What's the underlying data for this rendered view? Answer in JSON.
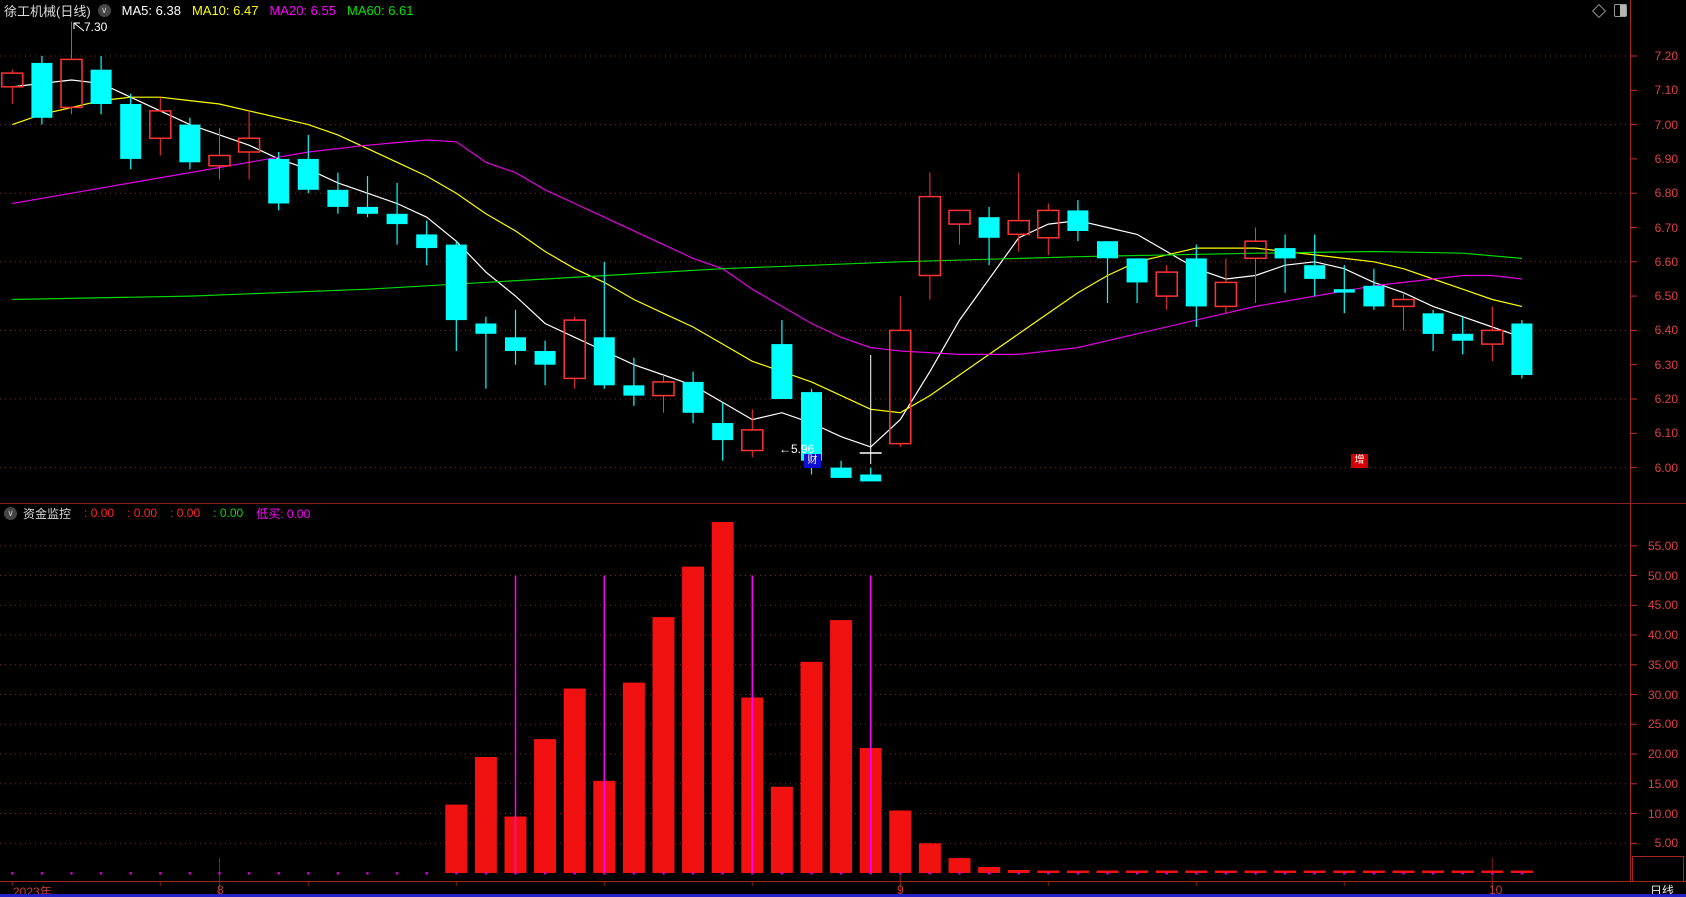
{
  "header": {
    "title": "徐工机械(日线)",
    "collapse_icon": "chevron-down-circle-icon",
    "legend": [
      {
        "label": "MA5:",
        "value": "6.38",
        "color": "#ffffff"
      },
      {
        "label": "MA10:",
        "value": "6.47",
        "color": "#ffff00"
      },
      {
        "label": "MA20:",
        "value": "6.55",
        "color": "#ff00ff"
      },
      {
        "label": "MA60:",
        "value": "6.61",
        "color": "#00e600"
      }
    ],
    "icons": [
      "diamond-icon",
      "split-square-icon"
    ]
  },
  "indicator_header": {
    "collapse_icon": "chevron-down-circle-icon",
    "title": "资金监控",
    "values": [
      {
        "label": ":",
        "value": "0.00",
        "color": "#ff2525"
      },
      {
        "label": ":",
        "value": "0.00",
        "color": "#ff2525"
      },
      {
        "label": ":",
        "value": "0.00",
        "color": "#ff2525"
      },
      {
        "label": ":",
        "value": "0.00",
        "color": "#00dd00"
      },
      {
        "label": "低买:",
        "value": "0.00",
        "color": "#ff00ff"
      }
    ]
  },
  "annotations": {
    "high_label": "7.30",
    "low_label": "←5.96",
    "event_badges": [
      {
        "text": "财",
        "bg": "#0d0dd6",
        "slot": 27
      },
      {
        "text": "增",
        "bg": "#d40000",
        "slot": 45.5
      }
    ],
    "cross_marker_slot": 29
  },
  "time_axis": {
    "year_label": "2023年",
    "months": [
      {
        "label": "8",
        "slot": 7
      },
      {
        "label": "9",
        "slot": 30
      },
      {
        "label": "10",
        "slot": 50
      }
    ]
  },
  "period_box": {
    "label": "日线"
  },
  "chart_data": {
    "type": "candlestick",
    "title": "徐工机械(日线)",
    "panels": [
      "price-kline",
      "fund-monitor-bars"
    ],
    "price_axis": {
      "values": [
        7.2,
        7.1,
        7.0,
        6.9,
        6.8,
        6.7,
        6.6,
        6.5,
        6.4,
        6.3,
        6.2,
        6.1,
        6.0
      ],
      "gridlines": [
        7.2,
        7.0,
        6.8,
        6.6,
        6.4,
        6.2,
        6.0
      ],
      "ylim": [
        5.94,
        7.32
      ]
    },
    "indicator_axis": {
      "values": [
        55,
        50,
        45,
        40,
        35,
        30,
        25,
        20,
        15,
        10,
        5
      ],
      "ylim": [
        0,
        60
      ]
    },
    "candles": [
      {
        "o": 7.11,
        "c": 7.15,
        "h": 7.16,
        "l": 7.06
      },
      {
        "o": 7.18,
        "c": 7.02,
        "h": 7.2,
        "l": 7.0
      },
      {
        "o": 7.05,
        "c": 7.19,
        "h": 7.3,
        "l": 7.03
      },
      {
        "o": 7.16,
        "c": 7.06,
        "h": 7.2,
        "l": 7.03
      },
      {
        "o": 7.06,
        "c": 6.9,
        "h": 7.09,
        "l": 6.87
      },
      {
        "o": 6.96,
        "c": 7.04,
        "h": 7.08,
        "l": 6.91
      },
      {
        "o": 7.0,
        "c": 6.89,
        "h": 7.02,
        "l": 6.87
      },
      {
        "o": 6.88,
        "c": 6.91,
        "h": 6.99,
        "l": 6.84
      },
      {
        "o": 6.92,
        "c": 6.96,
        "h": 7.04,
        "l": 6.84
      },
      {
        "o": 6.9,
        "c": 6.77,
        "h": 6.92,
        "l": 6.75
      },
      {
        "o": 6.9,
        "c": 6.81,
        "h": 6.97,
        "l": 6.8
      },
      {
        "o": 6.81,
        "c": 6.76,
        "h": 6.86,
        "l": 6.74
      },
      {
        "o": 6.76,
        "c": 6.74,
        "h": 6.85,
        "l": 6.73
      },
      {
        "o": 6.74,
        "c": 6.71,
        "h": 6.83,
        "l": 6.65
      },
      {
        "o": 6.68,
        "c": 6.64,
        "h": 6.72,
        "l": 6.59
      },
      {
        "o": 6.65,
        "c": 6.43,
        "h": 6.66,
        "l": 6.34
      },
      {
        "o": 6.42,
        "c": 6.39,
        "h": 6.44,
        "l": 6.23
      },
      {
        "o": 6.38,
        "c": 6.34,
        "h": 6.46,
        "l": 6.3
      },
      {
        "o": 6.34,
        "c": 6.3,
        "h": 6.37,
        "l": 6.24
      },
      {
        "o": 6.26,
        "c": 6.43,
        "h": 6.44,
        "l": 6.23
      },
      {
        "o": 6.38,
        "c": 6.24,
        "h": 6.6,
        "l": 6.23
      },
      {
        "o": 6.24,
        "c": 6.21,
        "h": 6.32,
        "l": 6.18
      },
      {
        "o": 6.21,
        "c": 6.25,
        "h": 6.27,
        "l": 6.16
      },
      {
        "o": 6.25,
        "c": 6.16,
        "h": 6.28,
        "l": 6.13
      },
      {
        "o": 6.13,
        "c": 6.08,
        "h": 6.19,
        "l": 6.02
      },
      {
        "o": 6.05,
        "c": 6.11,
        "h": 6.17,
        "l": 6.03
      },
      {
        "o": 6.36,
        "c": 6.2,
        "h": 6.43,
        "l": 6.2
      },
      {
        "o": 6.22,
        "c": 6.02,
        "h": 6.23,
        "l": 5.98
      },
      {
        "o": 6.0,
        "c": 5.97,
        "h": 6.02,
        "l": 5.97
      },
      {
        "o": 5.98,
        "c": 5.96,
        "h": 6.0,
        "l": 5.96
      },
      {
        "o": 6.07,
        "c": 6.4,
        "h": 6.5,
        "l": 6.06
      },
      {
        "o": 6.56,
        "c": 6.79,
        "h": 6.86,
        "l": 6.49
      },
      {
        "o": 6.71,
        "c": 6.75,
        "h": 6.75,
        "l": 6.65
      },
      {
        "o": 6.73,
        "c": 6.67,
        "h": 6.76,
        "l": 6.59
      },
      {
        "o": 6.68,
        "c": 6.72,
        "h": 6.86,
        "l": 6.63
      },
      {
        "o": 6.67,
        "c": 6.75,
        "h": 6.77,
        "l": 6.62
      },
      {
        "o": 6.75,
        "c": 6.69,
        "h": 6.78,
        "l": 6.66
      },
      {
        "o": 6.66,
        "c": 6.61,
        "h": 6.66,
        "l": 6.48
      },
      {
        "o": 6.61,
        "c": 6.54,
        "h": 6.61,
        "l": 6.48
      },
      {
        "o": 6.5,
        "c": 6.57,
        "h": 6.59,
        "l": 6.46
      },
      {
        "o": 6.61,
        "c": 6.47,
        "h": 6.65,
        "l": 6.41
      },
      {
        "o": 6.47,
        "c": 6.54,
        "h": 6.61,
        "l": 6.45
      },
      {
        "o": 6.61,
        "c": 6.66,
        "h": 6.7,
        "l": 6.48
      },
      {
        "o": 6.64,
        "c": 6.61,
        "h": 6.68,
        "l": 6.51
      },
      {
        "o": 6.59,
        "c": 6.55,
        "h": 6.68,
        "l": 6.5
      },
      {
        "o": 6.52,
        "c": 6.51,
        "h": 6.59,
        "l": 6.45
      },
      {
        "o": 6.53,
        "c": 6.47,
        "h": 6.58,
        "l": 6.46
      },
      {
        "o": 6.47,
        "c": 6.49,
        "h": 6.51,
        "l": 6.4
      },
      {
        "o": 6.45,
        "c": 6.39,
        "h": 6.46,
        "l": 6.34
      },
      {
        "o": 6.39,
        "c": 6.37,
        "h": 6.44,
        "l": 6.33
      },
      {
        "o": 6.36,
        "c": 6.4,
        "h": 6.47,
        "l": 6.31
      },
      {
        "o": 6.42,
        "c": 6.27,
        "h": 6.43,
        "l": 6.26
      }
    ],
    "ma_series": [
      {
        "name": "MA5",
        "color": "#ffffff",
        "points": [
          [
            0,
            7.11
          ],
          [
            1,
            7.12
          ],
          [
            2,
            7.13
          ],
          [
            3,
            7.12
          ],
          [
            4,
            7.08
          ],
          [
            5,
            7.04
          ],
          [
            6,
            7.0
          ],
          [
            7,
            6.97
          ],
          [
            8,
            6.94
          ],
          [
            9,
            6.9
          ],
          [
            10,
            6.87
          ],
          [
            11,
            6.83
          ],
          [
            12,
            6.8
          ],
          [
            13,
            6.77
          ],
          [
            14,
            6.73
          ],
          [
            15,
            6.66
          ],
          [
            16,
            6.57
          ],
          [
            17,
            6.5
          ],
          [
            18,
            6.42
          ],
          [
            19,
            6.38
          ],
          [
            20,
            6.34
          ],
          [
            21,
            6.3
          ],
          [
            22,
            6.27
          ],
          [
            23,
            6.24
          ],
          [
            24,
            6.19
          ],
          [
            25,
            6.14
          ],
          [
            26,
            6.16
          ],
          [
            27,
            6.13
          ],
          [
            28,
            6.09
          ],
          [
            29,
            6.06
          ],
          [
            30,
            6.14
          ],
          [
            31,
            6.28
          ],
          [
            32,
            6.43
          ],
          [
            33,
            6.55
          ],
          [
            34,
            6.67
          ],
          [
            35,
            6.71
          ],
          [
            36,
            6.72
          ],
          [
            37,
            6.7
          ],
          [
            38,
            6.68
          ],
          [
            39,
            6.63
          ],
          [
            40,
            6.58
          ],
          [
            41,
            6.55
          ],
          [
            42,
            6.56
          ],
          [
            43,
            6.59
          ],
          [
            44,
            6.6
          ],
          [
            45,
            6.58
          ],
          [
            46,
            6.54
          ],
          [
            47,
            6.51
          ],
          [
            48,
            6.47
          ],
          [
            49,
            6.44
          ],
          [
            50,
            6.41
          ],
          [
            51,
            6.38
          ]
        ]
      },
      {
        "name": "MA10",
        "color": "#ffff00",
        "points": [
          [
            0,
            7.0
          ],
          [
            1,
            7.03
          ],
          [
            2,
            7.05
          ],
          [
            3,
            7.07
          ],
          [
            4,
            7.08
          ],
          [
            5,
            7.08
          ],
          [
            6,
            7.07
          ],
          [
            7,
            7.06
          ],
          [
            8,
            7.04
          ],
          [
            9,
            7.02
          ],
          [
            10,
            7.0
          ],
          [
            11,
            6.97
          ],
          [
            12,
            6.93
          ],
          [
            13,
            6.89
          ],
          [
            14,
            6.85
          ],
          [
            15,
            6.8
          ],
          [
            16,
            6.74
          ],
          [
            17,
            6.69
          ],
          [
            18,
            6.63
          ],
          [
            19,
            6.58
          ],
          [
            20,
            6.54
          ],
          [
            21,
            6.49
          ],
          [
            22,
            6.45
          ],
          [
            23,
            6.41
          ],
          [
            24,
            6.36
          ],
          [
            25,
            6.31
          ],
          [
            26,
            6.28
          ],
          [
            27,
            6.25
          ],
          [
            28,
            6.21
          ],
          [
            29,
            6.17
          ],
          [
            30,
            6.16
          ],
          [
            31,
            6.21
          ],
          [
            32,
            6.27
          ],
          [
            33,
            6.33
          ],
          [
            34,
            6.39
          ],
          [
            35,
            6.45
          ],
          [
            36,
            6.51
          ],
          [
            37,
            6.56
          ],
          [
            38,
            6.6
          ],
          [
            39,
            6.62
          ],
          [
            40,
            6.64
          ],
          [
            41,
            6.64
          ],
          [
            42,
            6.64
          ],
          [
            43,
            6.63
          ],
          [
            44,
            6.62
          ],
          [
            45,
            6.61
          ],
          [
            46,
            6.6
          ],
          [
            47,
            6.58
          ],
          [
            48,
            6.55
          ],
          [
            49,
            6.52
          ],
          [
            50,
            6.49
          ],
          [
            51,
            6.47
          ]
        ]
      },
      {
        "name": "MA20",
        "color": "#e000e0",
        "points": [
          [
            0,
            6.77
          ],
          [
            2,
            6.8
          ],
          [
            4,
            6.83
          ],
          [
            6,
            6.86
          ],
          [
            8,
            6.89
          ],
          [
            10,
            6.92
          ],
          [
            12,
            6.94
          ],
          [
            14,
            6.955
          ],
          [
            15,
            6.95
          ],
          [
            16,
            6.89
          ],
          [
            17,
            6.86
          ],
          [
            18,
            6.81
          ],
          [
            19,
            6.77
          ],
          [
            20,
            6.73
          ],
          [
            21,
            6.69
          ],
          [
            22,
            6.65
          ],
          [
            23,
            6.61
          ],
          [
            24,
            6.58
          ],
          [
            25,
            6.52
          ],
          [
            26,
            6.47
          ],
          [
            27,
            6.42
          ],
          [
            28,
            6.38
          ],
          [
            29,
            6.35
          ],
          [
            30,
            6.34
          ],
          [
            32,
            6.33
          ],
          [
            34,
            6.33
          ],
          [
            36,
            6.35
          ],
          [
            38,
            6.39
          ],
          [
            40,
            6.43
          ],
          [
            42,
            6.47
          ],
          [
            44,
            6.5
          ],
          [
            46,
            6.53
          ],
          [
            48,
            6.55
          ],
          [
            49,
            6.56
          ],
          [
            50,
            6.56
          ],
          [
            51,
            6.55
          ]
        ]
      },
      {
        "name": "MA60",
        "color": "#00d800",
        "points": [
          [
            0,
            6.49
          ],
          [
            6,
            6.5
          ],
          [
            12,
            6.52
          ],
          [
            18,
            6.55
          ],
          [
            24,
            6.58
          ],
          [
            30,
            6.6
          ],
          [
            36,
            6.615
          ],
          [
            42,
            6.625
          ],
          [
            46,
            6.63
          ],
          [
            49,
            6.625
          ],
          [
            51,
            6.61
          ]
        ]
      }
    ],
    "indicator_bars": {
      "color": "#f21111",
      "values_by_slot": [
        null,
        null,
        null,
        null,
        null,
        null,
        null,
        null,
        null,
        null,
        null,
        null,
        null,
        null,
        null,
        11.5,
        19.5,
        9.5,
        22.5,
        31,
        15.5,
        32,
        43,
        51.5,
        59,
        29.5,
        14.5,
        35.5,
        42.5,
        21,
        10.5,
        5,
        2.5,
        1,
        0.5,
        0.25,
        0.25,
        0.25,
        0.25,
        0.25,
        0.25,
        0.25,
        0.25,
        0.25,
        0.25,
        0.25,
        0.25,
        0.25,
        0.25,
        0.25,
        0.25,
        0.25
      ]
    },
    "spike_slots": [
      17,
      20,
      25,
      29
    ],
    "spike_value": 50,
    "spike_color": "#ff00ff",
    "zero_dot_color": "#d800d8"
  }
}
